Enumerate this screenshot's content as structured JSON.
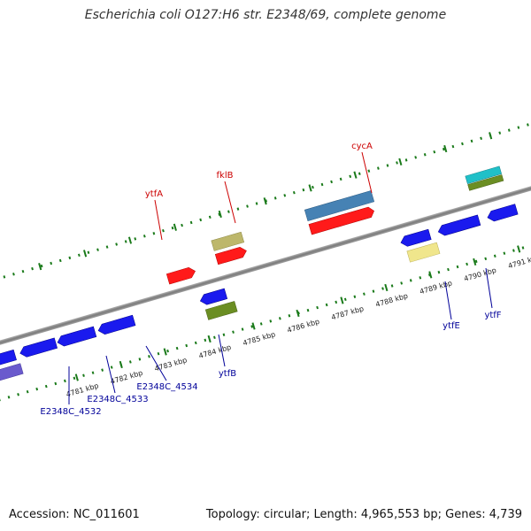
{
  "title": "Escherichia coli O127:H6 str. E2348/69, complete genome",
  "footer": {
    "accession": "Accession: NC_011601",
    "summary": "Topology: circular; Length: 4,965,553 bp; Genes: 4,739"
  },
  "kbp_labels": [
    "4781 kbp",
    "4782 kbp",
    "4783 kbp",
    "4784 kbp",
    "4785 kbp",
    "4786 kbp",
    "4787 kbp",
    "4788 kbp",
    "4789 kbp",
    "4790 kbp",
    "4791 kbp"
  ],
  "gene_labels": {
    "ytfA": "ytfA",
    "fklB": "fklB",
    "cycA": "cycA",
    "ytfB": "ytfB",
    "ytfE": "ytfE",
    "ytfF": "ytfF",
    "e4532": "E2348C_4532",
    "e4533": "E2348C_4533",
    "e4534": "E2348C_4534"
  },
  "colors": {
    "forward_label": "#cc0000",
    "reverse_label": "#000099",
    "tick_green": "#1a7a1a",
    "backbone": "#8c8c8c",
    "gene_red": "#ff1a1a",
    "gene_blue": "#1a1aee",
    "gene_olive": "#bdb76b",
    "gene_steelblue": "#4682b4",
    "gene_green": "#6b8e23",
    "gene_purple": "#6a5acd",
    "gene_khaki": "#f0e68c",
    "gene_cyan": "#20c0c8"
  }
}
